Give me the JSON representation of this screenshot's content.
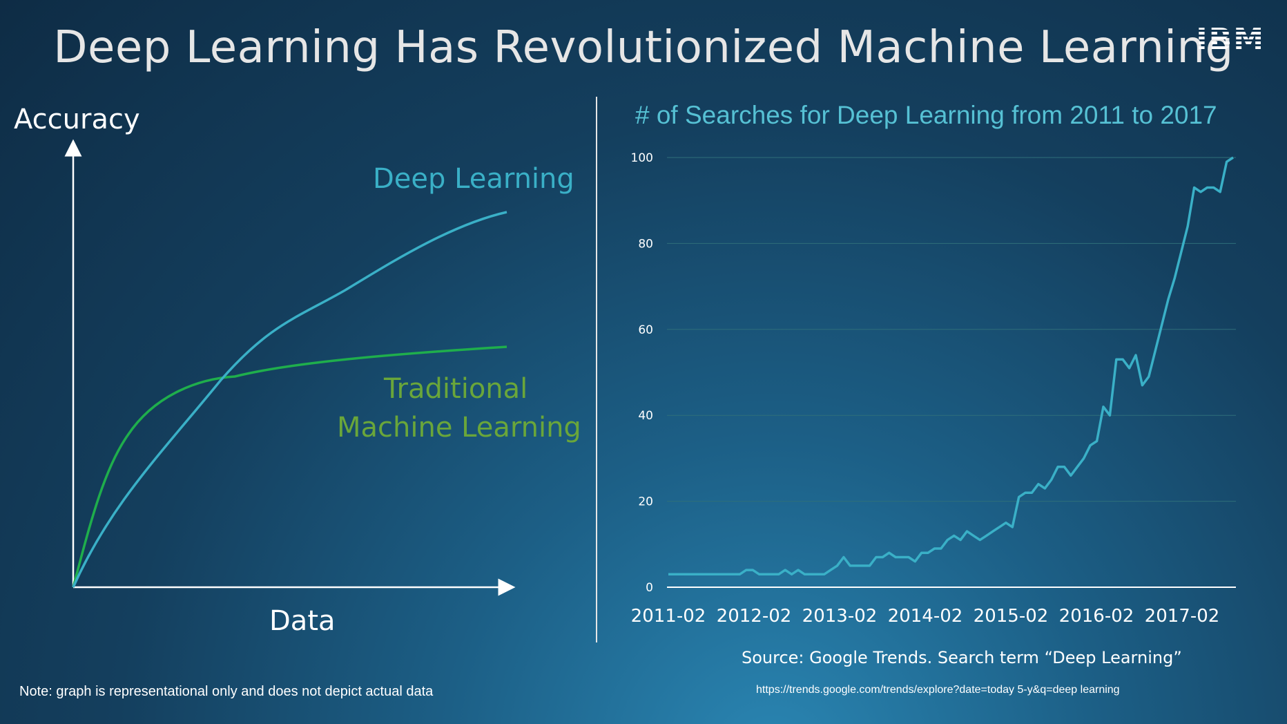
{
  "slide": {
    "title": "Deep Learning Has Revolutionized Machine Learning",
    "logo": "IBM",
    "note": "Note: graph is representational only and does not depict actual data"
  },
  "left_chart": {
    "y_label": "Accuracy",
    "x_label": "Data",
    "dl_label": "Deep Learning",
    "ml_label_line1": "Traditional",
    "ml_label_line2": "Machine Learning",
    "colors": {
      "deep_learning": "#3ab0c7",
      "traditional": "#1fae4c",
      "ml_text": "#6aa63a",
      "axis": "#ffffff"
    }
  },
  "chart_data": {
    "type": "line",
    "title": "# of Searches for Deep Learning from 2011 to 2017",
    "x_ticks": [
      "2011-02",
      "2012-02",
      "2013-02",
      "2014-02",
      "2015-02",
      "2016-02",
      "2017-02"
    ],
    "y_ticks": [
      "0",
      "20",
      "40",
      "60",
      "80",
      "100"
    ],
    "ylim": [
      0,
      100
    ],
    "grid": true,
    "series": [
      {
        "color": "#3ab0c7",
        "values": [
          3,
          3,
          3,
          3,
          3,
          3,
          3,
          3,
          3,
          3,
          3,
          3,
          4,
          4,
          3,
          3,
          3,
          3,
          4,
          3,
          4,
          3,
          3,
          3,
          3,
          4,
          5,
          7,
          5,
          5,
          5,
          5,
          7,
          7,
          8,
          7,
          7,
          7,
          6,
          8,
          8,
          9,
          9,
          11,
          12,
          11,
          13,
          12,
          11,
          12,
          13,
          14,
          15,
          14,
          21,
          22,
          22,
          24,
          23,
          25,
          28,
          28,
          26,
          28,
          30,
          33,
          34,
          42,
          40,
          53,
          53,
          51,
          54,
          47,
          49,
          55,
          61,
          67,
          72,
          78,
          84,
          93,
          92,
          93,
          93,
          92,
          99,
          100
        ]
      }
    ],
    "source": "Source: Google Trends.  Search term “Deep Learning”",
    "url": "https://trends.google.com/trends/explore?date=today 5-y&q=deep learning"
  }
}
